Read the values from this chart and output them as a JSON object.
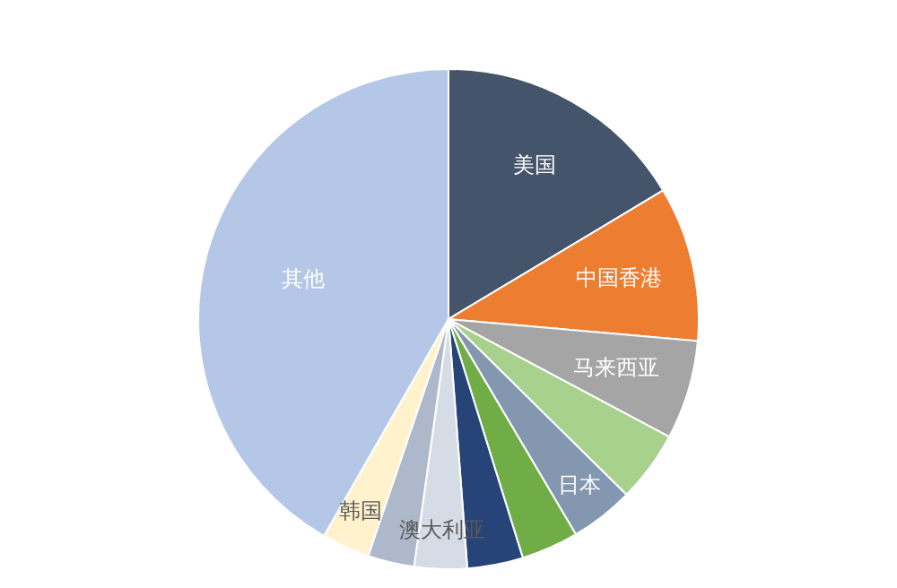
{
  "chart_data": {
    "type": "pie",
    "categories": [
      "美国",
      "中国香港",
      "马来西亚",
      null,
      "日本",
      null,
      null,
      "澳大利亚",
      null,
      "韩国",
      "其他"
    ],
    "values": [
      16.4,
      10,
      6.4,
      4.6,
      4.1,
      3.7,
      3.6,
      3.4,
      3.0,
      3.1,
      41.7
    ],
    "colors": [
      "#44546a",
      "#ed7d31",
      "#a5a5a5",
      "#a9d18e",
      "#8497b0",
      "#70ad47",
      "#264478",
      "#d6dce5",
      "#adb9ca",
      "#fff2cc",
      "#b4c7e7"
    ],
    "legend": false
  }
}
